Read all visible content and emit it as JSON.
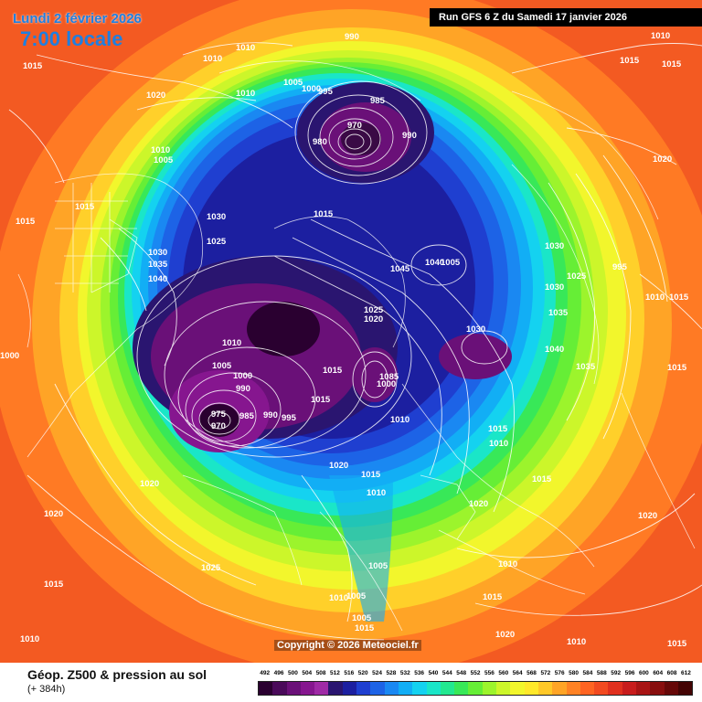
{
  "header": {
    "date": "Lundi 2 février 2026",
    "time": "7:00 locale",
    "run": "Run GFS 6 Z du Samedi 17 janvier 2026"
  },
  "footer": {
    "title": "Géop. Z500 & pression au sol",
    "lead": "(+ 384h)",
    "copyright": "Copyright © 2026 Meteociel.fr"
  },
  "scale": {
    "values": [
      "492",
      "496",
      "500",
      "504",
      "508",
      "512",
      "516",
      "520",
      "524",
      "528",
      "532",
      "536",
      "540",
      "544",
      "548",
      "552",
      "556",
      "560",
      "564",
      "568",
      "572",
      "576",
      "580",
      "584",
      "588",
      "592",
      "596",
      "600",
      "604",
      "608",
      "612"
    ],
    "colors": [
      "#2a0030",
      "#4a0a5a",
      "#6a1078",
      "#86168f",
      "#9f2aa6",
      "#2a1570",
      "#1c1fa0",
      "#1f3fd0",
      "#1d63e6",
      "#1a88f2",
      "#12aef5",
      "#14d2f0",
      "#1ae6c8",
      "#22e890",
      "#38e858",
      "#66ee36",
      "#9cf42c",
      "#ccf62a",
      "#f2f62c",
      "#ffe82a",
      "#ffc828",
      "#ffa426",
      "#ff8224",
      "#ff6422",
      "#f24a20",
      "#e0301e",
      "#c81c1c",
      "#a81414",
      "#880e0e",
      "#660808",
      "#440404"
    ]
  },
  "map": {
    "pressure_labels": [
      {
        "t": "1010"
      },
      {
        "t": "1015"
      },
      {
        "t": "1020"
      },
      {
        "t": "1010"
      },
      {
        "t": "1005"
      },
      {
        "t": "1010"
      },
      {
        "t": "1010"
      },
      {
        "t": "990"
      },
      {
        "t": "1005"
      },
      {
        "t": "1000"
      },
      {
        "t": "995"
      },
      {
        "t": "985"
      },
      {
        "t": "970"
      },
      {
        "t": "980"
      },
      {
        "t": "990"
      },
      {
        "t": "1010"
      },
      {
        "t": "1015"
      },
      {
        "t": "1015"
      },
      {
        "t": "1020"
      },
      {
        "t": "1015"
      },
      {
        "t": "1030"
      },
      {
        "t": "1025"
      },
      {
        "t": "1015"
      },
      {
        "t": "1030"
      },
      {
        "t": "1035"
      },
      {
        "t": "1040"
      },
      {
        "t": "1015"
      },
      {
        "t": "1045"
      },
      {
        "t": "1040"
      },
      {
        "t": "1005"
      },
      {
        "t": "1030"
      },
      {
        "t": "1025"
      },
      {
        "t": "1030"
      },
      {
        "t": "995"
      },
      {
        "t": "1010"
      },
      {
        "t": "1015"
      },
      {
        "t": "1025"
      },
      {
        "t": "1020"
      },
      {
        "t": "1035"
      },
      {
        "t": "1040"
      },
      {
        "t": "1035"
      },
      {
        "t": "1015"
      },
      {
        "t": "1030"
      },
      {
        "t": "1010"
      },
      {
        "t": "1005"
      },
      {
        "t": "1000"
      },
      {
        "t": "990"
      },
      {
        "t": "1015"
      },
      {
        "t": "1085"
      },
      {
        "t": "1000"
      },
      {
        "t": "975"
      },
      {
        "t": "970"
      },
      {
        "t": "985"
      },
      {
        "t": "990"
      },
      {
        "t": "995"
      },
      {
        "t": "1010"
      },
      {
        "t": "1015"
      },
      {
        "t": "1020"
      },
      {
        "t": "1015"
      },
      {
        "t": "1010"
      },
      {
        "t": "1015"
      },
      {
        "t": "1010"
      },
      {
        "t": "1020"
      },
      {
        "t": "1015"
      },
      {
        "t": "1020"
      },
      {
        "t": "1015"
      },
      {
        "t": "1020"
      },
      {
        "t": "1025"
      },
      {
        "t": "1005"
      },
      {
        "t": "1010"
      },
      {
        "t": "1010"
      },
      {
        "t": "1005"
      },
      {
        "t": "1005"
      },
      {
        "t": "1015"
      },
      {
        "t": "1015"
      },
      {
        "t": "1010"
      },
      {
        "t": "1020"
      },
      {
        "t": "1010"
      },
      {
        "t": "1020"
      },
      {
        "t": "1000"
      },
      {
        "t": "1015"
      }
    ]
  }
}
